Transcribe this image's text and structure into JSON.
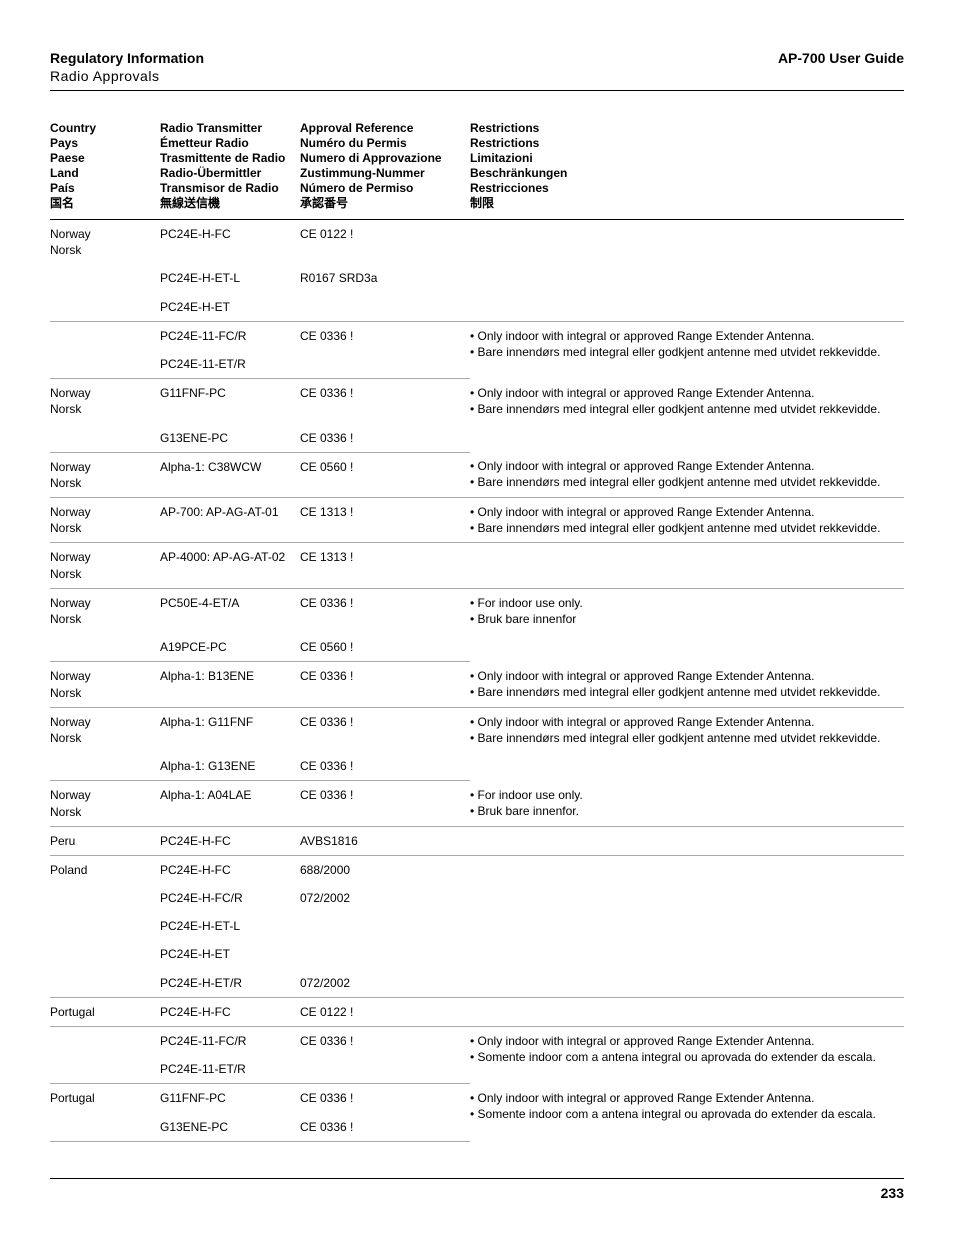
{
  "header": {
    "title": "Regulatory Information",
    "subtitle": "Radio Approvals",
    "guide": "AP-700 User Guide"
  },
  "columns": {
    "country": "Country\nPays\nPaese\nLand\nPaís\n国名",
    "transmitter": "Radio Transmitter\nÉmetteur Radio\nTrasmittente de Radio\nRadio-Übermittler\nTransmisor de Radio\n無線送信機",
    "approval": "Approval Reference\nNuméro du Permis\nNumero di Approvazione\nZustimmung-Nummer\nNúmero de Permiso\n承認番号",
    "restrictions": "Restrictions\nRestrictions\nLimitazioni\nBeschränkungen\nRestricciones\n制限"
  },
  "rows": [
    {
      "country": "Norway\nNorsk",
      "tx": "PC24E-H-FC",
      "ap": "CE 0122 !",
      "re": "",
      "sep": false
    },
    {
      "country": "",
      "tx": "PC24E-H-ET-L",
      "ap": "R0167 SRD3a",
      "re": "",
      "sep": false
    },
    {
      "country": "",
      "tx": "PC24E-H-ET",
      "ap": "",
      "re": "",
      "sep": true
    },
    {
      "country": "",
      "tx": "PC24E-11-FC/R",
      "ap": "CE 0336 !",
      "re": "• Only indoor with integral or approved Range Extender Antenna.\n• Bare innendørs med integral eller godkjent antenne med utvidet rekkevidde.",
      "sep": false,
      "rerows": 2
    },
    {
      "country": "",
      "tx": "PC24E-11-ET/R",
      "ap": "",
      "re": "",
      "sep": true,
      "skipre": true
    },
    {
      "country": "Norway\nNorsk",
      "tx": "G11FNF-PC",
      "ap": "CE 0336 !",
      "re": "• Only indoor with integral or approved Range Extender Antenna.\n• Bare innendørs med integral eller godkjent antenne med utvidet rekkevidde.",
      "sep": false,
      "rerows": 2
    },
    {
      "country": "",
      "tx": "G13ENE-PC",
      "ap": "CE 0336 !",
      "re": "",
      "sep": true,
      "skipre": true
    },
    {
      "country": "Norway\nNorsk",
      "tx": "Alpha-1: C38WCW",
      "ap": "CE 0560 !",
      "re": "• Only indoor with integral or approved Range Extender Antenna.\n• Bare innendørs med integral eller godkjent antenne med utvidet rekkevidde.",
      "sep": true
    },
    {
      "country": "Norway\nNorsk",
      "tx": "AP-700: AP-AG-AT-01",
      "ap": "CE 1313 !",
      "re": "• Only indoor with integral or approved Range Extender Antenna.\n• Bare innendørs med integral eller godkjent antenne med utvidet rekkevidde.",
      "sep": true
    },
    {
      "country": "Norway\nNorsk",
      "tx": "AP-4000: AP-AG-AT-02",
      "ap": "CE 1313 !",
      "re": "",
      "sep": true
    },
    {
      "country": "Norway\nNorsk",
      "tx": "PC50E-4-ET/A",
      "ap": "CE 0336 !",
      "re": "• For indoor use only.\n• Bruk bare innenfor",
      "sep": false,
      "rerows": 2
    },
    {
      "country": "",
      "tx": "A19PCE-PC",
      "ap": "CE 0560 !",
      "re": "",
      "sep": true,
      "skipre": true
    },
    {
      "country": "Norway\nNorsk",
      "tx": "Alpha-1: B13ENE",
      "ap": "CE 0336 !",
      "re": "• Only indoor with integral or approved Range Extender Antenna.\n• Bare innendørs med integral eller godkjent antenne med utvidet rekkevidde.",
      "sep": true
    },
    {
      "country": "Norway\nNorsk",
      "tx": "Alpha-1: G11FNF",
      "ap": "CE 0336 !",
      "re": "• Only indoor with integral or approved Range Extender Antenna.\n• Bare innendørs med integral eller godkjent antenne med utvidet rekkevidde.",
      "sep": false,
      "rerows": 2
    },
    {
      "country": "",
      "tx": "Alpha-1: G13ENE",
      "ap": "CE 0336 !",
      "re": "",
      "sep": true,
      "skipre": true
    },
    {
      "country": "Norway\nNorsk",
      "tx": "Alpha-1: A04LAE",
      "ap": "CE 0336 !",
      "re": "• For indoor use only.\n• Bruk bare innenfor.",
      "sep": true
    },
    {
      "country": "Peru",
      "tx": "PC24E-H-FC",
      "ap": "AVBS1816",
      "re": "",
      "sep": true
    },
    {
      "country": "Poland",
      "tx": "PC24E-H-FC",
      "ap": "688/2000",
      "re": "",
      "sep": false
    },
    {
      "country": "",
      "tx": "PC24E-H-FC/R",
      "ap": "072/2002",
      "re": "",
      "sep": false
    },
    {
      "country": "",
      "tx": "PC24E-H-ET-L",
      "ap": "",
      "re": "",
      "sep": false
    },
    {
      "country": "",
      "tx": "PC24E-H-ET",
      "ap": "",
      "re": "",
      "sep": false
    },
    {
      "country": "",
      "tx": "PC24E-H-ET/R",
      "ap": "072/2002",
      "re": "",
      "sep": true
    },
    {
      "country": "Portugal",
      "tx": "PC24E-H-FC",
      "ap": "CE 0122 !",
      "re": "",
      "sep": true
    },
    {
      "country": "",
      "tx": "PC24E-11-FC/R",
      "ap": "CE 0336 !",
      "re": "• Only indoor with integral or approved Range Extender Antenna.\n• Somente indoor com a antena integral ou aprovada do extender da escala.",
      "sep": false,
      "rerows": 2
    },
    {
      "country": "",
      "tx": "PC24E-11-ET/R",
      "ap": "",
      "re": "",
      "sep": true,
      "skipre": true
    },
    {
      "country": "Portugal",
      "tx": "G11FNF-PC",
      "ap": "CE 0336 !",
      "re": "• Only indoor with integral or approved Range Extender Antenna.\n• Somente indoor com a antena integral ou aprovada do extender da escala.",
      "sep": false,
      "rerows": 2
    },
    {
      "country": "",
      "tx": "G13ENE-PC",
      "ap": "CE 0336 !",
      "re": "",
      "sep": true,
      "skipre": true
    }
  ],
  "page_number": "233"
}
